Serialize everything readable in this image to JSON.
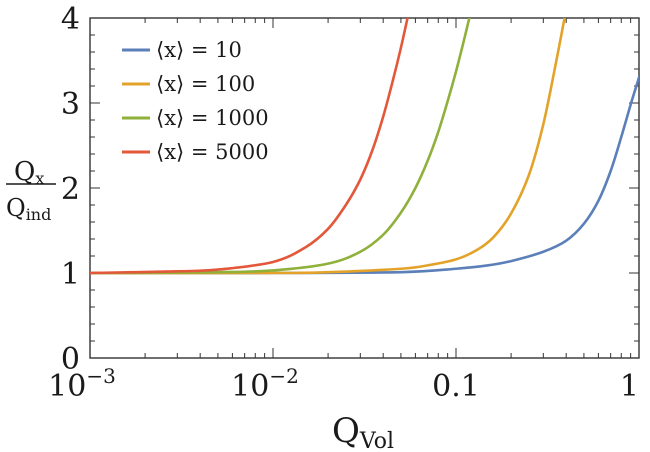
{
  "chart_data": {
    "type": "line",
    "title": "",
    "xlabel": {
      "main": "Q",
      "sub": "Vol"
    },
    "ylabel": {
      "num_main": "Q",
      "num_sub": "x",
      "den_main": "Q",
      "den_sub": "ind"
    },
    "x_scale": "log",
    "xlim": [
      0.001,
      1
    ],
    "ylim": [
      0,
      4
    ],
    "x_ticks": [
      {
        "value": 0.001,
        "base": "10",
        "exp": "−3"
      },
      {
        "value": 0.01,
        "base": "10",
        "exp": "−2"
      },
      {
        "value": 0.1,
        "base": "0.1",
        "exp": ""
      },
      {
        "value": 1,
        "base": "1",
        "exp": ""
      }
    ],
    "y_ticks": [
      {
        "value": 0,
        "label": "0"
      },
      {
        "value": 1,
        "label": "1"
      },
      {
        "value": 2,
        "label": "2"
      },
      {
        "value": 3,
        "label": "3"
      },
      {
        "value": 4,
        "label": "4"
      }
    ],
    "grid": false,
    "legend_position": "top-left",
    "series": [
      {
        "name": "⟨x⟩ = 10",
        "color": "#5b7fb8",
        "x": [
          0.001,
          0.01,
          0.05,
          0.1,
          0.15,
          0.2,
          0.3,
          0.4,
          0.5,
          0.6,
          0.7,
          0.8,
          0.9,
          1.0
        ],
        "y": [
          1.0,
          1.0,
          1.01,
          1.05,
          1.09,
          1.14,
          1.25,
          1.38,
          1.58,
          1.85,
          2.2,
          2.6,
          2.98,
          3.3
        ]
      },
      {
        "name": "⟨x⟩ = 100",
        "color": "#e3a32a",
        "x": [
          0.001,
          0.01,
          0.02,
          0.05,
          0.07,
          0.1,
          0.13,
          0.16,
          0.2,
          0.25,
          0.3,
          0.35,
          0.4
        ],
        "y": [
          1.0,
          1.0,
          1.01,
          1.05,
          1.09,
          1.16,
          1.27,
          1.42,
          1.7,
          2.15,
          2.75,
          3.45,
          4.1
        ]
      },
      {
        "name": "⟨x⟩ = 1000",
        "color": "#8fb03a",
        "x": [
          0.001,
          0.005,
          0.01,
          0.02,
          0.03,
          0.04,
          0.05,
          0.06,
          0.07,
          0.08,
          0.09,
          0.1,
          0.11,
          0.12,
          0.13
        ],
        "y": [
          1.0,
          1.01,
          1.03,
          1.11,
          1.25,
          1.45,
          1.71,
          2.0,
          2.32,
          2.66,
          3.02,
          3.37,
          3.72,
          4.05,
          4.3
        ]
      },
      {
        "name": "⟨x⟩ = 5000",
        "color": "#e3583a",
        "x": [
          0.001,
          0.003,
          0.005,
          0.01,
          0.015,
          0.02,
          0.025,
          0.03,
          0.035,
          0.04,
          0.045,
          0.05,
          0.055,
          0.06
        ],
        "y": [
          1.0,
          1.02,
          1.04,
          1.13,
          1.3,
          1.52,
          1.8,
          2.1,
          2.45,
          2.84,
          3.25,
          3.65,
          4.05,
          4.4
        ]
      }
    ]
  }
}
